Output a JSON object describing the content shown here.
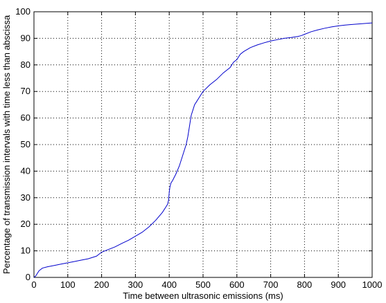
{
  "chart_data": {
    "type": "line",
    "title": "",
    "xlabel": "Time between ultrasonic emissions (ms)",
    "ylabel": "Percentage of transmission intervals with time less than abscissa",
    "xlim": [
      0,
      1000
    ],
    "ylim": [
      0,
      100
    ],
    "x_ticks": [
      0,
      100,
      200,
      300,
      400,
      500,
      600,
      700,
      800,
      900,
      1000
    ],
    "y_ticks": [
      0,
      10,
      20,
      30,
      40,
      50,
      60,
      70,
      80,
      90,
      100
    ],
    "x_tick_labels": [
      "0",
      "100",
      "200",
      "300",
      "400",
      "500",
      "600",
      "700",
      "800",
      "900",
      "1000"
    ],
    "y_tick_labels": [
      "0",
      "10",
      "20",
      "30",
      "40",
      "50",
      "60",
      "70",
      "80",
      "90",
      "100"
    ],
    "grid": true,
    "line_color": "#0000cc",
    "series": [
      {
        "x": [
          0,
          5,
          10,
          15,
          20,
          25,
          40,
          60,
          80,
          100,
          120,
          140,
          160,
          185,
          200,
          220,
          240,
          260,
          280,
          300,
          320,
          340,
          360,
          380,
          390,
          395,
          398,
          400,
          402,
          405,
          410,
          420,
          430,
          440,
          450,
          455,
          460,
          465,
          470,
          475,
          480,
          490,
          500,
          520,
          540,
          560,
          580,
          590,
          600,
          605,
          610,
          620,
          640,
          660,
          680,
          700,
          720,
          740,
          760,
          780,
          790,
          800,
          820,
          840,
          860,
          880,
          900,
          920,
          940,
          960,
          980,
          1000
        ],
        "y": [
          0,
          0.5,
          1.5,
          2.5,
          3,
          3.5,
          4,
          4.5,
          5,
          5.5,
          6,
          6.5,
          7,
          8,
          9.5,
          10.5,
          11.5,
          12.8,
          14,
          15.5,
          17,
          19,
          21.5,
          24.5,
          26.5,
          27.5,
          29,
          32,
          34,
          35.5,
          36.5,
          39,
          42,
          46,
          50,
          53,
          57,
          61,
          63,
          65,
          66,
          68,
          70,
          72.5,
          74.5,
          77,
          79,
          81,
          82,
          83,
          84,
          85,
          86.5,
          87.5,
          88.3,
          89,
          89.5,
          90,
          90.3,
          90.7,
          91,
          91.5,
          92.5,
          93.2,
          93.8,
          94.3,
          94.7,
          95,
          95.2,
          95.4,
          95.6,
          95.8
        ]
      }
    ]
  }
}
